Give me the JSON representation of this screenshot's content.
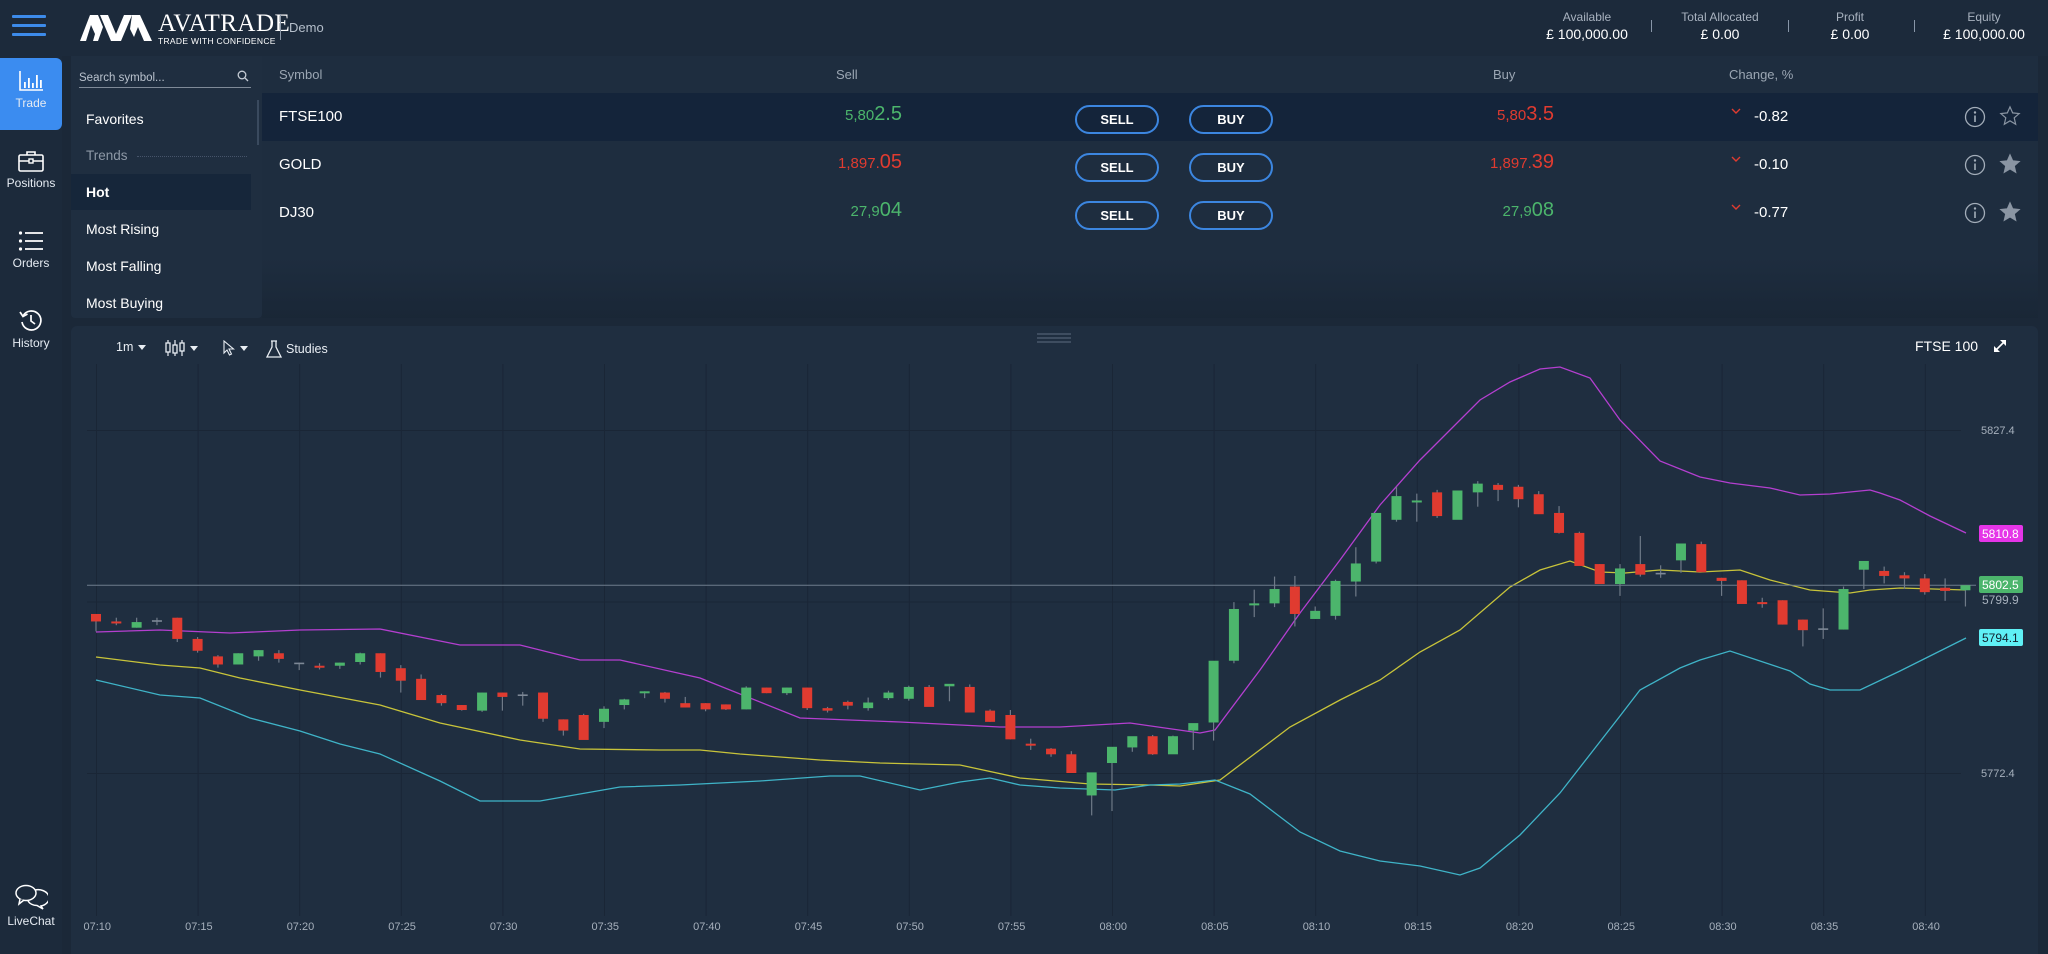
{
  "header": {
    "brand": "AVATRADE",
    "tagline": "TRADE WITH CONFIDENCE",
    "mode": "Demo",
    "account": [
      {
        "label": "Available",
        "value": "£ 100,000.00"
      },
      {
        "label": "Total Allocated",
        "value": "£ 0.00"
      },
      {
        "label": "Profit",
        "value": "£ 0.00"
      },
      {
        "label": "Equity",
        "value": "£ 100,000.00"
      }
    ]
  },
  "nav": {
    "items": [
      {
        "label": "Trade",
        "icon": "bar-chart-icon",
        "active": true
      },
      {
        "label": "Positions",
        "icon": "briefcase-icon"
      },
      {
        "label": "Orders",
        "icon": "list-icon"
      },
      {
        "label": "History",
        "icon": "history-icon"
      }
    ],
    "livechat": "LiveChat"
  },
  "symbols": {
    "search_placeholder": "Search symbol...",
    "favorites": "Favorites",
    "trends_header": "Trends",
    "categories": [
      "Hot",
      "Most Rising",
      "Most Falling",
      "Most Buying"
    ],
    "selected_category": "Hot"
  },
  "table": {
    "headers": {
      "symbol": "Symbol",
      "sell": "Sell",
      "buy": "Buy",
      "change": "Change, %"
    },
    "sell_button": "SELL",
    "buy_button": "BUY",
    "rows": [
      {
        "symbol": "FTSE100",
        "sell_prefix": "5,80",
        "sell_big": "2.5",
        "sell_color": "green",
        "buy_prefix": "5,80",
        "buy_big": "3.5",
        "buy_color": "red",
        "change": "-0.82",
        "favorite": false,
        "selected": true
      },
      {
        "symbol": "GOLD",
        "sell_prefix": "1,897.",
        "sell_big": "05",
        "sell_color": "red",
        "buy_prefix": "1,897.",
        "buy_big": "39",
        "buy_color": "red",
        "change": "-0.10",
        "favorite": true,
        "selected": false
      },
      {
        "symbol": "DJ30",
        "sell_prefix": "27,9",
        "sell_big": "04",
        "sell_color": "green",
        "buy_prefix": "27,9",
        "buy_big": "08",
        "buy_color": "green",
        "change": "-0.77",
        "favorite": true,
        "selected": false
      }
    ]
  },
  "chart_toolbar": {
    "interval": "1m",
    "chart_type_icon": "candles-icon",
    "cursor_icon": "cursor-icon",
    "studies": "Studies",
    "instrument": "FTSE 100"
  },
  "colors": {
    "accent": "#3b8cf0",
    "up": "#4cb56c",
    "down": "#e03b30",
    "bb_upper": "#b43fd0",
    "bb_middle": "#c8c43a",
    "bb_lower": "#3fb4c8",
    "label_upper": "#e535e8",
    "label_last": "#4cb56c",
    "label_lower": "#5ff0f5"
  },
  "chart_data": {
    "type": "candlestick",
    "title": "FTSE 100",
    "interval": "1m",
    "xlabel": "",
    "ylabel": "",
    "x_ticks": [
      "07:10",
      "07:15",
      "07:20",
      "07:25",
      "07:30",
      "07:35",
      "07:40",
      "07:45",
      "07:50",
      "07:55",
      "08:00",
      "08:05",
      "08:10",
      "08:15",
      "08:20",
      "08:25",
      "08:30",
      "08:35",
      "08:40"
    ],
    "y_ticks": [
      5827.4,
      5799.9,
      5772.4
    ],
    "price_labels": {
      "bb_upper": "5810.8",
      "last": "5802.5",
      "bb_lower": "5794.1",
      "crosshair": "5799.9"
    },
    "ylim": [
      5765.6,
      5849.9
    ],
    "grid": true,
    "legend": "none",
    "ohlc": [
      {
        "t": "07:10",
        "o": 5797.9,
        "h": 5797.9,
        "l": 5795.1,
        "c": 5796.7
      },
      {
        "t": "07:11",
        "o": 5796.7,
        "h": 5797.3,
        "l": 5796.1,
        "c": 5796.4
      },
      {
        "t": "07:12",
        "o": 5795.7,
        "h": 5797.3,
        "l": 5795.7,
        "c": 5796.6
      },
      {
        "t": "07:13",
        "o": 5796.9,
        "h": 5797.3,
        "l": 5796.1,
        "c": 5796.9
      },
      {
        "t": "07:14",
        "o": 5797.3,
        "h": 5797.3,
        "l": 5793.4,
        "c": 5793.9
      },
      {
        "t": "07:15",
        "o": 5793.9,
        "h": 5794.2,
        "l": 5791.7,
        "c": 5792.0
      },
      {
        "t": "07:16",
        "o": 5791.1,
        "h": 5791.3,
        "l": 5789.3,
        "c": 5789.8
      },
      {
        "t": "07:17",
        "o": 5789.8,
        "h": 5791.6,
        "l": 5789.8,
        "c": 5791.6
      },
      {
        "t": "07:18",
        "o": 5791.1,
        "h": 5792.1,
        "l": 5790.4,
        "c": 5792.1
      },
      {
        "t": "07:19",
        "o": 5791.6,
        "h": 5792.1,
        "l": 5790.1,
        "c": 5790.7
      },
      {
        "t": "07:20",
        "o": 5790.1,
        "h": 5790.1,
        "l": 5788.9,
        "c": 5790.1
      },
      {
        "t": "07:21",
        "o": 5789.6,
        "h": 5790.0,
        "l": 5789.0,
        "c": 5789.3
      },
      {
        "t": "07:22",
        "o": 5789.6,
        "h": 5790.1,
        "l": 5789.1,
        "c": 5790.1
      },
      {
        "t": "07:23",
        "o": 5790.2,
        "h": 5791.7,
        "l": 5789.8,
        "c": 5791.6
      },
      {
        "t": "07:24",
        "o": 5791.6,
        "h": 5791.6,
        "l": 5787.7,
        "c": 5788.6
      },
      {
        "t": "07:25",
        "o": 5789.2,
        "h": 5789.7,
        "l": 5785.3,
        "c": 5787.2
      },
      {
        "t": "07:26",
        "o": 5787.5,
        "h": 5788.2,
        "l": 5784.4,
        "c": 5784.1
      },
      {
        "t": "07:27",
        "o": 5784.9,
        "h": 5785.1,
        "l": 5783.2,
        "c": 5783.6
      },
      {
        "t": "07:28",
        "o": 5783.3,
        "h": 5783.3,
        "l": 5782.4,
        "c": 5782.5
      },
      {
        "t": "07:29",
        "o": 5782.4,
        "h": 5785.3,
        "l": 5782.2,
        "c": 5785.3
      },
      {
        "t": "07:30",
        "o": 5785.3,
        "h": 5785.3,
        "l": 5782.4,
        "c": 5784.6
      },
      {
        "t": "07:31",
        "o": 5785.0,
        "h": 5785.4,
        "l": 5783.2,
        "c": 5785.0
      },
      {
        "t": "07:32",
        "o": 5785.3,
        "h": 5785.3,
        "l": 5780.6,
        "c": 5781.1
      },
      {
        "t": "07:33",
        "o": 5781.0,
        "h": 5781.0,
        "l": 5778.4,
        "c": 5779.2
      },
      {
        "t": "07:34",
        "o": 5781.7,
        "h": 5781.9,
        "l": 5778.0,
        "c": 5777.7
      },
      {
        "t": "07:35",
        "o": 5780.6,
        "h": 5783.1,
        "l": 5779.6,
        "c": 5782.7
      },
      {
        "t": "07:36",
        "o": 5783.3,
        "h": 5784.3,
        "l": 5782.6,
        "c": 5784.2
      },
      {
        "t": "07:37",
        "o": 5785.2,
        "h": 5785.5,
        "l": 5784.4,
        "c": 5785.5
      },
      {
        "t": "07:38",
        "o": 5785.3,
        "h": 5785.4,
        "l": 5783.7,
        "c": 5784.3
      },
      {
        "t": "07:39",
        "o": 5783.6,
        "h": 5784.6,
        "l": 5782.9,
        "c": 5782.9
      },
      {
        "t": "07:40",
        "o": 5783.6,
        "h": 5783.6,
        "l": 5782.3,
        "c": 5782.6
      },
      {
        "t": "07:41",
        "o": 5783.4,
        "h": 5783.4,
        "l": 5782.5,
        "c": 5782.6
      },
      {
        "t": "07:42",
        "o": 5782.6,
        "h": 5786.3,
        "l": 5782.6,
        "c": 5786.1
      },
      {
        "t": "07:43",
        "o": 5786.1,
        "h": 5786.1,
        "l": 5785.2,
        "c": 5785.2
      },
      {
        "t": "07:44",
        "o": 5785.2,
        "h": 5786.1,
        "l": 5784.9,
        "c": 5786.1
      },
      {
        "t": "07:45",
        "o": 5786.1,
        "h": 5786.1,
        "l": 5782.5,
        "c": 5782.8
      },
      {
        "t": "07:46",
        "o": 5782.8,
        "h": 5783.0,
        "l": 5782.1,
        "c": 5782.4
      },
      {
        "t": "07:47",
        "o": 5783.8,
        "h": 5784.0,
        "l": 5782.6,
        "c": 5783.2
      },
      {
        "t": "07:48",
        "o": 5782.8,
        "h": 5784.5,
        "l": 5782.4,
        "c": 5783.7
      },
      {
        "t": "07:49",
        "o": 5784.4,
        "h": 5785.6,
        "l": 5784.1,
        "c": 5785.3
      },
      {
        "t": "07:50",
        "o": 5784.3,
        "h": 5786.4,
        "l": 5784.0,
        "c": 5786.2
      },
      {
        "t": "07:51",
        "o": 5786.2,
        "h": 5786.5,
        "l": 5784.1,
        "c": 5783.0
      },
      {
        "t": "07:52",
        "o": 5786.3,
        "h": 5786.3,
        "l": 5783.9,
        "c": 5786.7
      },
      {
        "t": "07:53",
        "o": 5786.2,
        "h": 5786.6,
        "l": 5783.5,
        "c": 5782.1
      },
      {
        "t": "07:54",
        "o": 5782.4,
        "h": 5782.6,
        "l": 5780.6,
        "c": 5780.6
      },
      {
        "t": "07:55",
        "o": 5781.7,
        "h": 5782.5,
        "l": 5777.8,
        "c": 5777.8
      },
      {
        "t": "07:56",
        "o": 5777.1,
        "h": 5777.9,
        "l": 5776.1,
        "c": 5776.8
      },
      {
        "t": "07:57",
        "o": 5776.3,
        "h": 5776.4,
        "l": 5775.0,
        "c": 5775.4
      },
      {
        "t": "07:58",
        "o": 5775.4,
        "h": 5775.9,
        "l": 5772.4,
        "c": 5772.4
      },
      {
        "t": "07:59",
        "o": 5768.8,
        "h": 5768.9,
        "l": 5765.6,
        "c": 5772.5
      },
      {
        "t": "08:00",
        "o": 5774.0,
        "h": 5774.0,
        "l": 5766.3,
        "c": 5776.6
      },
      {
        "t": "08:01",
        "o": 5776.5,
        "h": 5778.1,
        "l": 5775.8,
        "c": 5778.3
      },
      {
        "t": "08:02",
        "o": 5778.3,
        "h": 5778.5,
        "l": 5775.3,
        "c": 5775.4
      },
      {
        "t": "08:03",
        "o": 5775.4,
        "h": 5778.4,
        "l": 5775.6,
        "c": 5778.3
      },
      {
        "t": "08:04",
        "o": 5779.2,
        "h": 5779.6,
        "l": 5776.1,
        "c": 5780.4
      },
      {
        "t": "08:05",
        "o": 5780.5,
        "h": 5780.5,
        "l": 5777.6,
        "c": 5790.4
      },
      {
        "t": "08:06",
        "o": 5790.4,
        "h": 5799.8,
        "l": 5790.0,
        "c": 5798.7
      },
      {
        "t": "08:07",
        "o": 5799.4,
        "h": 5801.8,
        "l": 5797.4,
        "c": 5799.6
      },
      {
        "t": "08:08",
        "o": 5799.6,
        "h": 5803.9,
        "l": 5799.0,
        "c": 5801.9
      },
      {
        "t": "08:09",
        "o": 5802.3,
        "h": 5804.0,
        "l": 5795.9,
        "c": 5797.9
      },
      {
        "t": "08:10",
        "o": 5797.1,
        "h": 5799.1,
        "l": 5797.1,
        "c": 5798.4
      },
      {
        "t": "08:11",
        "o": 5797.6,
        "h": 5803.4,
        "l": 5797.0,
        "c": 5803.2
      },
      {
        "t": "08:12",
        "o": 5803.1,
        "h": 5808.6,
        "l": 5800.7,
        "c": 5806.0
      },
      {
        "t": "08:13",
        "o": 5806.3,
        "h": 5806.5,
        "l": 5806.0,
        "c": 5814.1
      },
      {
        "t": "08:14",
        "o": 5813.0,
        "h": 5818.3,
        "l": 5812.7,
        "c": 5816.8
      },
      {
        "t": "08:15",
        "o": 5815.9,
        "h": 5817.2,
        "l": 5812.7,
        "c": 5816.1
      },
      {
        "t": "08:16",
        "o": 5817.4,
        "h": 5817.8,
        "l": 5813.3,
        "c": 5813.6
      },
      {
        "t": "08:17",
        "o": 5813.0,
        "h": 5816.7,
        "l": 5813.6,
        "c": 5817.7
      },
      {
        "t": "08:18",
        "o": 5817.4,
        "h": 5819.2,
        "l": 5815.1,
        "c": 5818.8
      },
      {
        "t": "08:19",
        "o": 5818.6,
        "h": 5818.9,
        "l": 5816.0,
        "c": 5817.8
      },
      {
        "t": "08:20",
        "o": 5818.3,
        "h": 5818.6,
        "l": 5815.0,
        "c": 5816.3
      },
      {
        "t": "08:21",
        "o": 5817.1,
        "h": 5817.6,
        "l": 5814.0,
        "c": 5813.9
      },
      {
        "t": "08:22",
        "o": 5814.1,
        "h": 5815.2,
        "l": 5810.8,
        "c": 5810.9
      },
      {
        "t": "08:23",
        "o": 5810.9,
        "h": 5811.1,
        "l": 5806.2,
        "c": 5805.6
      },
      {
        "t": "08:24",
        "o": 5805.9,
        "h": 5805.9,
        "l": 5803.0,
        "c": 5802.7
      },
      {
        "t": "08:25",
        "o": 5802.7,
        "h": 5805.9,
        "l": 5800.8,
        "c": 5805.2
      },
      {
        "t": "08:26",
        "o": 5805.9,
        "h": 5810.4,
        "l": 5803.9,
        "c": 5804.2
      },
      {
        "t": "08:27",
        "o": 5804.5,
        "h": 5805.7,
        "l": 5803.7,
        "c": 5804.5
      },
      {
        "t": "08:28",
        "o": 5806.5,
        "h": 5809.2,
        "l": 5804.5,
        "c": 5809.2
      },
      {
        "t": "08:29",
        "o": 5809.1,
        "h": 5809.5,
        "l": 5804.7,
        "c": 5804.6
      },
      {
        "t": "08:30",
        "o": 5803.7,
        "h": 5803.7,
        "l": 5800.8,
        "c": 5803.2
      },
      {
        "t": "08:31",
        "o": 5803.3,
        "h": 5803.3,
        "l": 5799.8,
        "c": 5799.5
      },
      {
        "t": "08:32",
        "o": 5799.8,
        "h": 5800.5,
        "l": 5798.9,
        "c": 5799.5
      },
      {
        "t": "08:33",
        "o": 5800.1,
        "h": 5800.1,
        "l": 5796.2,
        "c": 5796.2
      },
      {
        "t": "08:34",
        "o": 5797.0,
        "h": 5797.0,
        "l": 5792.7,
        "c": 5795.3
      },
      {
        "t": "08:35",
        "o": 5795.6,
        "h": 5798.8,
        "l": 5793.9,
        "c": 5795.6
      },
      {
        "t": "08:36",
        "o": 5795.4,
        "h": 5802.3,
        "l": 5795.4,
        "c": 5801.9
      },
      {
        "t": "08:37",
        "o": 5805.0,
        "h": 5805.6,
        "l": 5801.9,
        "c": 5806.4
      },
      {
        "t": "08:38",
        "o": 5804.8,
        "h": 5805.5,
        "l": 5802.8,
        "c": 5804.0
      },
      {
        "t": "08:39",
        "o": 5804.1,
        "h": 5804.6,
        "l": 5801.9,
        "c": 5803.6
      },
      {
        "t": "08:40",
        "o": 5803.6,
        "h": 5804.3,
        "l": 5801.0,
        "c": 5801.4
      },
      {
        "t": "08:41",
        "o": 5802.1,
        "h": 5803.6,
        "l": 5800.0,
        "c": 5801.6
      },
      {
        "t": "08:42",
        "o": 5801.7,
        "h": 5802.5,
        "l": 5799.1,
        "c": 5802.5
      }
    ],
    "series": [
      {
        "name": "BB Upper",
        "values_px": "approximate"
      },
      {
        "name": "BB Middle"
      },
      {
        "name": "BB Lower"
      }
    ]
  }
}
